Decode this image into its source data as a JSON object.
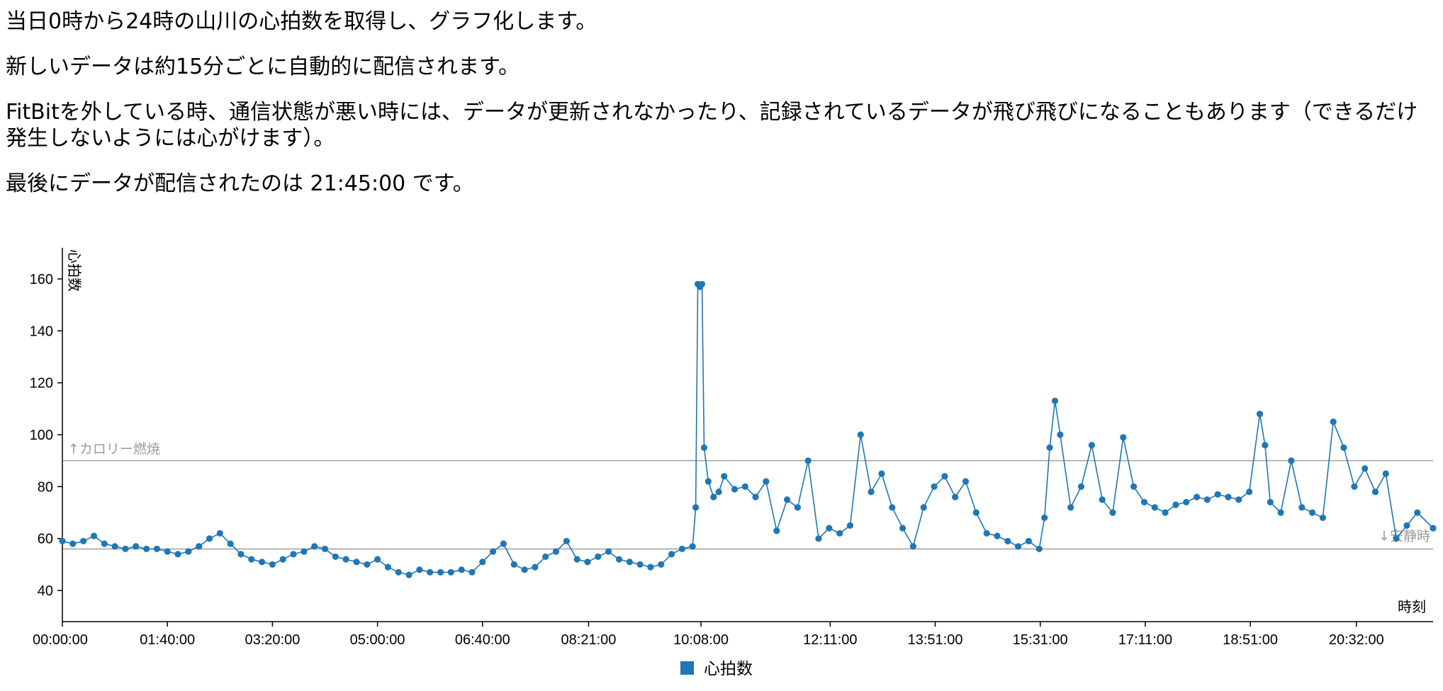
{
  "intro": {
    "line1": "当日0時から24時の山川の心拍数を取得し、グラフ化します。",
    "line2": "新しいデータは約15分ごとに自動的に配信されます。",
    "line3": "FitBitを外している時、通信状態が悪い時には、データが更新されなかったり、記録されているデータが飛び飛びになることもあります（できるだけ発生しないようには心がけます）。",
    "line4": "最後にデータが配信されたのは 21:45:00 です。"
  },
  "chart_data": {
    "type": "line",
    "ylabel": "心拍数",
    "xlabel": "時刻",
    "ylim": [
      28,
      172
    ],
    "yticks": [
      40,
      60,
      80,
      100,
      120,
      140,
      160
    ],
    "xlim": [
      "00:00:00",
      "21:45:00"
    ],
    "xticks": [
      "00:00:00",
      "01:40:00",
      "03:20:00",
      "05:00:00",
      "06:40:00",
      "08:21:00",
      "10:08:00",
      "12:11:00",
      "13:51:00",
      "15:31:00",
      "17:11:00",
      "18:51:00",
      "20:32:00"
    ],
    "reference_lines": [
      {
        "label": "↑カロリー燃焼",
        "value": 90
      },
      {
        "label": "↓安静時",
        "value": 56
      }
    ],
    "legend": {
      "position": "bottom-center",
      "entries": [
        "心拍数"
      ]
    },
    "series_color": "#1f77b4",
    "series": [
      {
        "name": "心拍数",
        "points": [
          [
            "00:00:00",
            59
          ],
          [
            "00:10:00",
            58
          ],
          [
            "00:20:00",
            59
          ],
          [
            "00:30:00",
            61
          ],
          [
            "00:40:00",
            58
          ],
          [
            "00:50:00",
            57
          ],
          [
            "01:00:00",
            56
          ],
          [
            "01:10:00",
            57
          ],
          [
            "01:20:00",
            56
          ],
          [
            "01:30:00",
            56
          ],
          [
            "01:40:00",
            55
          ],
          [
            "01:50:00",
            54
          ],
          [
            "02:00:00",
            55
          ],
          [
            "02:10:00",
            57
          ],
          [
            "02:20:00",
            60
          ],
          [
            "02:30:00",
            62
          ],
          [
            "02:40:00",
            58
          ],
          [
            "02:50:00",
            54
          ],
          [
            "03:00:00",
            52
          ],
          [
            "03:10:00",
            51
          ],
          [
            "03:20:00",
            50
          ],
          [
            "03:30:00",
            52
          ],
          [
            "03:40:00",
            54
          ],
          [
            "03:50:00",
            55
          ],
          [
            "04:00:00",
            57
          ],
          [
            "04:10:00",
            56
          ],
          [
            "04:20:00",
            53
          ],
          [
            "04:30:00",
            52
          ],
          [
            "04:40:00",
            51
          ],
          [
            "04:50:00",
            50
          ],
          [
            "05:00:00",
            52
          ],
          [
            "05:10:00",
            49
          ],
          [
            "05:20:00",
            47
          ],
          [
            "05:30:00",
            46
          ],
          [
            "05:40:00",
            48
          ],
          [
            "05:50:00",
            47
          ],
          [
            "06:00:00",
            47
          ],
          [
            "06:10:00",
            47
          ],
          [
            "06:20:00",
            48
          ],
          [
            "06:30:00",
            47
          ],
          [
            "06:40:00",
            51
          ],
          [
            "06:50:00",
            55
          ],
          [
            "07:00:00",
            58
          ],
          [
            "07:10:00",
            50
          ],
          [
            "07:20:00",
            48
          ],
          [
            "07:30:00",
            49
          ],
          [
            "07:40:00",
            53
          ],
          [
            "07:50:00",
            55
          ],
          [
            "08:00:00",
            59
          ],
          [
            "08:10:00",
            52
          ],
          [
            "08:20:00",
            51
          ],
          [
            "08:30:00",
            53
          ],
          [
            "08:40:00",
            55
          ],
          [
            "08:50:00",
            52
          ],
          [
            "09:00:00",
            51
          ],
          [
            "09:10:00",
            50
          ],
          [
            "09:20:00",
            49
          ],
          [
            "09:30:00",
            50
          ],
          [
            "09:40:00",
            54
          ],
          [
            "09:50:00",
            56
          ],
          [
            "10:00:00",
            57
          ],
          [
            "10:03:00",
            72
          ],
          [
            "10:05:00",
            158
          ],
          [
            "10:07:00",
            157
          ],
          [
            "10:09:00",
            158
          ],
          [
            "10:11:00",
            95
          ],
          [
            "10:15:00",
            82
          ],
          [
            "10:20:00",
            76
          ],
          [
            "10:25:00",
            78
          ],
          [
            "10:30:00",
            84
          ],
          [
            "10:40:00",
            79
          ],
          [
            "10:50:00",
            80
          ],
          [
            "11:00:00",
            76
          ],
          [
            "11:10:00",
            82
          ],
          [
            "11:20:00",
            63
          ],
          [
            "11:30:00",
            75
          ],
          [
            "11:40:00",
            72
          ],
          [
            "11:50:00",
            90
          ],
          [
            "12:00:00",
            60
          ],
          [
            "12:10:00",
            64
          ],
          [
            "12:20:00",
            62
          ],
          [
            "12:30:00",
            65
          ],
          [
            "12:40:00",
            100
          ],
          [
            "12:50:00",
            78
          ],
          [
            "13:00:00",
            85
          ],
          [
            "13:10:00",
            72
          ],
          [
            "13:20:00",
            64
          ],
          [
            "13:30:00",
            57
          ],
          [
            "13:40:00",
            72
          ],
          [
            "13:50:00",
            80
          ],
          [
            "14:00:00",
            84
          ],
          [
            "14:10:00",
            76
          ],
          [
            "14:20:00",
            82
          ],
          [
            "14:30:00",
            70
          ],
          [
            "14:40:00",
            62
          ],
          [
            "14:50:00",
            61
          ],
          [
            "15:00:00",
            59
          ],
          [
            "15:10:00",
            57
          ],
          [
            "15:20:00",
            59
          ],
          [
            "15:30:00",
            56
          ],
          [
            "15:35:00",
            68
          ],
          [
            "15:40:00",
            95
          ],
          [
            "15:45:00",
            113
          ],
          [
            "15:50:00",
            100
          ],
          [
            "16:00:00",
            72
          ],
          [
            "16:10:00",
            80
          ],
          [
            "16:20:00",
            96
          ],
          [
            "16:30:00",
            75
          ],
          [
            "16:40:00",
            70
          ],
          [
            "16:50:00",
            99
          ],
          [
            "17:00:00",
            80
          ],
          [
            "17:10:00",
            74
          ],
          [
            "17:20:00",
            72
          ],
          [
            "17:30:00",
            70
          ],
          [
            "17:40:00",
            73
          ],
          [
            "17:50:00",
            74
          ],
          [
            "18:00:00",
            76
          ],
          [
            "18:10:00",
            75
          ],
          [
            "18:20:00",
            77
          ],
          [
            "18:30:00",
            76
          ],
          [
            "18:40:00",
            75
          ],
          [
            "18:50:00",
            78
          ],
          [
            "19:00:00",
            108
          ],
          [
            "19:05:00",
            96
          ],
          [
            "19:10:00",
            74
          ],
          [
            "19:20:00",
            70
          ],
          [
            "19:30:00",
            90
          ],
          [
            "19:40:00",
            72
          ],
          [
            "19:50:00",
            70
          ],
          [
            "20:00:00",
            68
          ],
          [
            "20:10:00",
            105
          ],
          [
            "20:20:00",
            95
          ],
          [
            "20:30:00",
            80
          ],
          [
            "20:40:00",
            87
          ],
          [
            "20:50:00",
            78
          ],
          [
            "21:00:00",
            85
          ],
          [
            "21:10:00",
            60
          ],
          [
            "21:20:00",
            65
          ],
          [
            "21:30:00",
            70
          ],
          [
            "21:45:00",
            64
          ]
        ]
      }
    ]
  }
}
